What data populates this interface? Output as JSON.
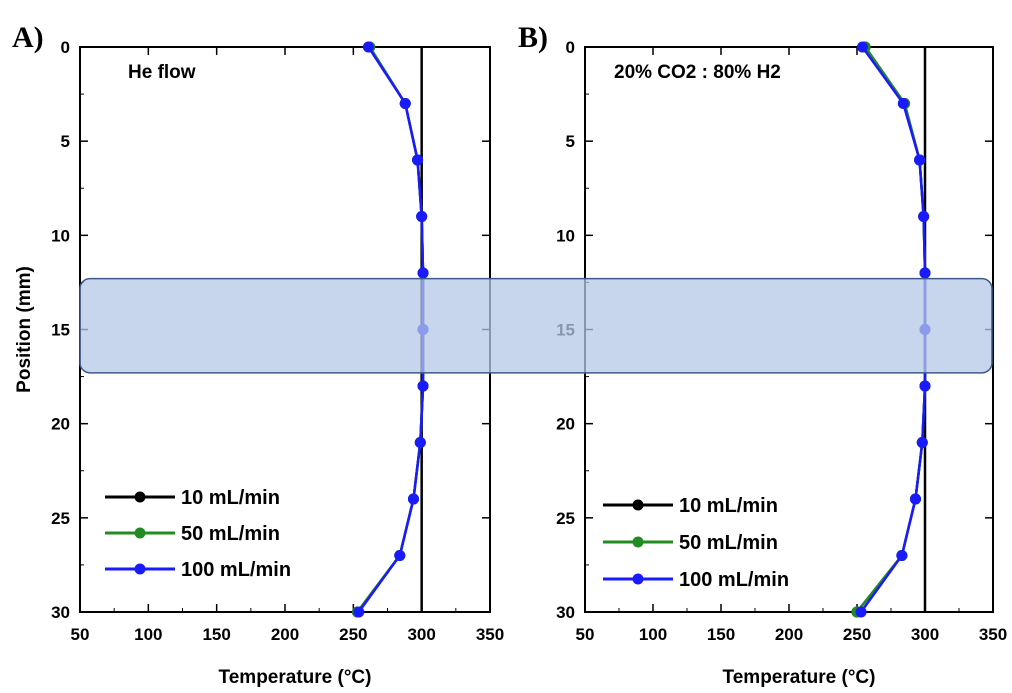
{
  "chart_data": [
    {
      "type": "line",
      "panel_label": "A)",
      "annotation": "He flow",
      "xlabel": "Temperature (°C)",
      "ylabel": "Position (mm)",
      "xlim": [
        50,
        350
      ],
      "ylim": [
        30,
        0
      ],
      "y_inverted": true,
      "xticks": [
        "50",
        "100",
        "150",
        "200",
        "250",
        "300",
        "350"
      ],
      "yticks": [
        "0",
        "5",
        "10",
        "15",
        "20",
        "25",
        "30"
      ],
      "reference_line_x": 300,
      "highlight_band_y": [
        12.3,
        17.3
      ],
      "legend_position": "bottom-left",
      "series": [
        {
          "name": "10 mL/min",
          "color": "#000000",
          "x": [
            262,
            288,
            297,
            300,
            301,
            301,
            301,
            299,
            294,
            284,
            253
          ],
          "y": [
            0,
            3,
            6,
            9,
            12,
            15,
            18,
            21,
            24,
            27,
            30
          ]
        },
        {
          "name": "50 mL/min",
          "color": "#228B22",
          "x": [
            262,
            288,
            297,
            300,
            301,
            301,
            301,
            299,
            294,
            284,
            253
          ],
          "y": [
            0,
            3,
            6,
            9,
            12,
            15,
            18,
            21,
            24,
            27,
            30
          ]
        },
        {
          "name": "100 mL/min",
          "color": "#1a1aff",
          "x": [
            261,
            288,
            297,
            300,
            301,
            301,
            301,
            299,
            294,
            284,
            254
          ],
          "y": [
            0,
            3,
            6,
            9,
            12,
            15,
            18,
            21,
            24,
            27,
            30
          ]
        }
      ]
    },
    {
      "type": "line",
      "panel_label": "B)",
      "annotation": "20% CO2 : 80% H2",
      "xlabel": "Temperature (°C)",
      "ylabel": "",
      "xlim": [
        50,
        350
      ],
      "ylim": [
        30,
        0
      ],
      "y_inverted": true,
      "xticks": [
        "50",
        "100",
        "150",
        "200",
        "250",
        "300",
        "350"
      ],
      "yticks": [
        "0",
        "5",
        "10",
        "15",
        "20",
        "25",
        "30"
      ],
      "reference_line_x": 300,
      "legend_position": "bottom-left",
      "series": [
        {
          "name": "10 mL/min",
          "color": "#000000",
          "x": [
            256,
            285,
            296,
            299,
            300,
            300,
            300,
            298,
            293,
            283,
            250
          ],
          "y": [
            0,
            3,
            6,
            9,
            12,
            15,
            18,
            21,
            24,
            27,
            30
          ]
        },
        {
          "name": "50 mL/min",
          "color": "#228B22",
          "x": [
            256,
            285,
            296,
            299,
            300,
            300,
            300,
            298,
            293,
            283,
            250
          ],
          "y": [
            0,
            3,
            6,
            9,
            12,
            15,
            18,
            21,
            24,
            27,
            30
          ]
        },
        {
          "name": "100 mL/min",
          "color": "#1a1aff",
          "x": [
            254,
            284,
            296,
            299,
            300,
            300,
            300,
            298,
            293,
            283,
            253
          ],
          "y": [
            0,
            3,
            6,
            9,
            12,
            15,
            18,
            21,
            24,
            27,
            30
          ]
        }
      ]
    }
  ],
  "highlight_color": "#b4c7e7",
  "highlight_stroke": "#3b5a8c"
}
